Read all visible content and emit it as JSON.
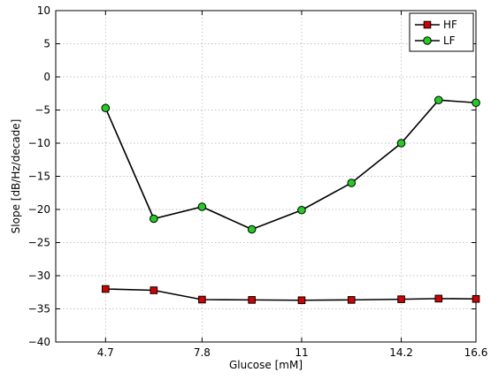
{
  "chart_data": {
    "type": "line",
    "title": "",
    "xlabel": "Glucose [mM]",
    "ylabel": "Slope [dB/Hz/decade]",
    "xlim": [
      3.1,
      16.6
    ],
    "ylim": [
      -40,
      10
    ],
    "x_ticks": [
      4.7,
      7.8,
      11,
      14.2,
      16.6
    ],
    "x_tick_labels": [
      "4.7",
      "7.8",
      "11",
      "14.2",
      "16.6"
    ],
    "y_ticks": [
      -40,
      -35,
      -30,
      -25,
      -20,
      -15,
      -10,
      -5,
      0,
      5,
      10
    ],
    "y_tick_labels": [
      "−40",
      "−35",
      "−30",
      "−25",
      "−20",
      "−15",
      "−10",
      "−5",
      "0",
      "5",
      "10"
    ],
    "grid": true,
    "legend_position": "top-right",
    "x": [
      4.7,
      6.25,
      7.8,
      9.4,
      11,
      12.6,
      14.2,
      15.4,
      16.6
    ],
    "series": [
      {
        "name": "HF",
        "marker": "square",
        "color": "#d40000",
        "values": [
          -32.0,
          -32.2,
          -33.6,
          -33.65,
          -33.7,
          -33.65,
          -33.55,
          -33.45,
          -33.5
        ]
      },
      {
        "name": "LF",
        "marker": "circle",
        "color": "#22cc22",
        "values": [
          -4.7,
          -21.4,
          -19.6,
          -23.0,
          -20.1,
          -16.0,
          -10.0,
          -3.5,
          -3.9
        ]
      }
    ]
  }
}
